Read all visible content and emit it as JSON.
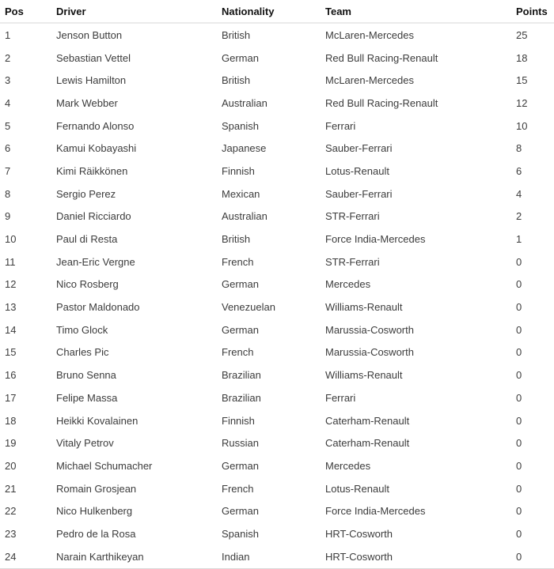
{
  "table": {
    "columns": {
      "pos": "Pos",
      "driver": "Driver",
      "nationality": "Nationality",
      "team": "Team",
      "points": "Points"
    },
    "rows": [
      {
        "pos": "1",
        "driver": "Jenson Button",
        "nationality": "British",
        "team": "McLaren-Mercedes",
        "points": "25"
      },
      {
        "pos": "2",
        "driver": "Sebastian Vettel",
        "nationality": "German",
        "team": "Red Bull Racing-Renault",
        "points": "18"
      },
      {
        "pos": "3",
        "driver": "Lewis Hamilton",
        "nationality": "British",
        "team": "McLaren-Mercedes",
        "points": "15"
      },
      {
        "pos": "4",
        "driver": "Mark Webber",
        "nationality": "Australian",
        "team": "Red Bull Racing-Renault",
        "points": "12"
      },
      {
        "pos": "5",
        "driver": "Fernando Alonso",
        "nationality": "Spanish",
        "team": "Ferrari",
        "points": "10"
      },
      {
        "pos": "6",
        "driver": "Kamui Kobayashi",
        "nationality": "Japanese",
        "team": "Sauber-Ferrari",
        "points": "8"
      },
      {
        "pos": "7",
        "driver": "Kimi Räikkönen",
        "nationality": "Finnish",
        "team": "Lotus-Renault",
        "points": "6"
      },
      {
        "pos": "8",
        "driver": "Sergio Perez",
        "nationality": "Mexican",
        "team": "Sauber-Ferrari",
        "points": "4"
      },
      {
        "pos": "9",
        "driver": "Daniel Ricciardo",
        "nationality": "Australian",
        "team": "STR-Ferrari",
        "points": "2"
      },
      {
        "pos": "10",
        "driver": "Paul di Resta",
        "nationality": "British",
        "team": "Force India-Mercedes",
        "points": "1"
      },
      {
        "pos": "11",
        "driver": "Jean-Eric Vergne",
        "nationality": "French",
        "team": "STR-Ferrari",
        "points": "0"
      },
      {
        "pos": "12",
        "driver": "Nico Rosberg",
        "nationality": "German",
        "team": "Mercedes",
        "points": "0"
      },
      {
        "pos": "13",
        "driver": "Pastor Maldonado",
        "nationality": "Venezuelan",
        "team": "Williams-Renault",
        "points": "0"
      },
      {
        "pos": "14",
        "driver": "Timo Glock",
        "nationality": "German",
        "team": "Marussia-Cosworth",
        "points": "0"
      },
      {
        "pos": "15",
        "driver": "Charles Pic",
        "nationality": "French",
        "team": "Marussia-Cosworth",
        "points": "0"
      },
      {
        "pos": "16",
        "driver": "Bruno Senna",
        "nationality": "Brazilian",
        "team": "Williams-Renault",
        "points": "0"
      },
      {
        "pos": "17",
        "driver": "Felipe Massa",
        "nationality": "Brazilian",
        "team": "Ferrari",
        "points": "0"
      },
      {
        "pos": "18",
        "driver": "Heikki Kovalainen",
        "nationality": "Finnish",
        "team": "Caterham-Renault",
        "points": "0"
      },
      {
        "pos": "19",
        "driver": "Vitaly Petrov",
        "nationality": "Russian",
        "team": "Caterham-Renault",
        "points": "0"
      },
      {
        "pos": "20",
        "driver": "Michael Schumacher",
        "nationality": "German",
        "team": "Mercedes",
        "points": "0"
      },
      {
        "pos": "21",
        "driver": "Romain Grosjean",
        "nationality": "French",
        "team": "Lotus-Renault",
        "points": "0"
      },
      {
        "pos": "22",
        "driver": "Nico Hulkenberg",
        "nationality": "German",
        "team": "Force India-Mercedes",
        "points": "0"
      },
      {
        "pos": "23",
        "driver": "Pedro de la Rosa",
        "nationality": "Spanish",
        "team": "HRT-Cosworth",
        "points": "0"
      },
      {
        "pos": "24",
        "driver": "Narain Karthikeyan",
        "nationality": "Indian",
        "team": "HRT-Cosworth",
        "points": "0"
      }
    ]
  },
  "colors": {
    "header_text": "#111111",
    "body_text": "#3c3c3c",
    "header_border": "#ebebeb",
    "bottom_border": "#d9d9d9",
    "background": "#ffffff"
  }
}
